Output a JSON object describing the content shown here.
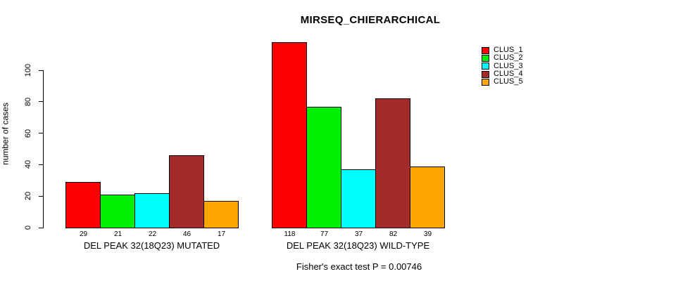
{
  "title": "MIRSEQ_CHIERARCHICAL",
  "footer": "Fisher's exact test P = 0.00746",
  "chart_data": {
    "type": "bar",
    "title": "MIRSEQ_CHIERARCHICAL",
    "ylabel": "number of cases",
    "xlabel": "",
    "yticks": [
      0,
      20,
      40,
      60,
      80,
      100
    ],
    "ylim": [
      0,
      118
    ],
    "grid": false,
    "legend_position": "top-right",
    "bar_value_labels": true,
    "series": [
      {
        "name": "CLUS_1",
        "color": "#FF0000"
      },
      {
        "name": "CLUS_2",
        "color": "#00EE00"
      },
      {
        "name": "CLUS_3",
        "color": "#00FFFF"
      },
      {
        "name": "CLUS_4",
        "color": "#A52A2A"
      },
      {
        "name": "CLUS_5",
        "color": "#FFA500"
      }
    ],
    "groups": [
      {
        "label": "DEL PEAK 32(18Q23) MUTATED",
        "values": [
          29,
          21,
          22,
          46,
          17
        ]
      },
      {
        "label": "DEL PEAK 32(18Q23) WILD-TYPE",
        "values": [
          118,
          77,
          37,
          82,
          39
        ]
      }
    ],
    "annotation": "Fisher's exact test P = 0.00746"
  }
}
